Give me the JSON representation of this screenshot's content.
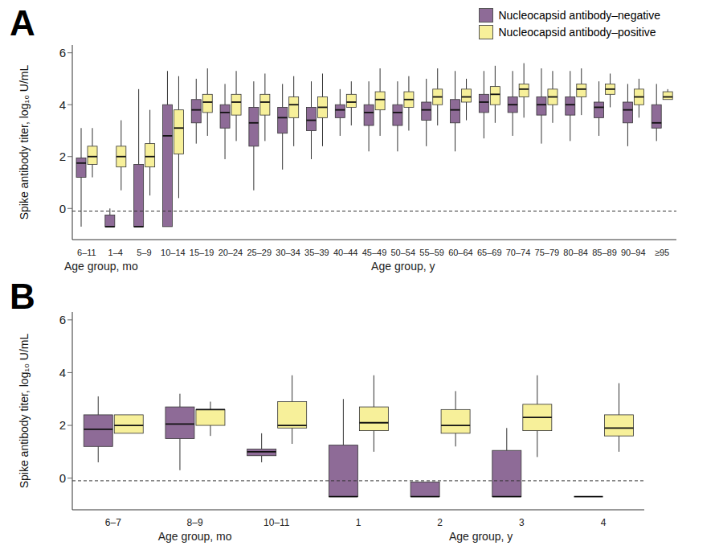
{
  "chart_data": [
    {
      "type": "box",
      "title": "A",
      "y_label": "Spike antibody titer, log₁₀ U/mL",
      "categories": [
        "6–11",
        "1–4",
        "5–9",
        "10–14",
        "15–19",
        "20–24",
        "25–29",
        "30–34",
        "35–39",
        "40–44",
        "45–49",
        "50–54",
        "55–59",
        "60–64",
        "65–69",
        "70–74",
        "75–79",
        "80–84",
        "85–89",
        "90–94",
        "≥95"
      ],
      "x_groups": [
        {
          "label": "Age group, mo",
          "from": "6–11",
          "to": "1–4"
        },
        {
          "label": "Age group, y",
          "from": "5–9",
          "to": "≥95"
        }
      ],
      "ylim": [
        -1.2,
        6.3
      ],
      "yticks": [
        0,
        2,
        4,
        6
      ],
      "grid": false,
      "legend": "top-right",
      "reference_line": {
        "y": -0.1,
        "line_style": "dashed"
      },
      "series": [
        {
          "name": "Nucleocapsid antibody–negative",
          "color": "#8e6b97",
          "values": [
            1.75,
            -0.7,
            -0.7,
            2.8,
            3.8,
            3.7,
            3.3,
            3.5,
            3.4,
            3.8,
            3.7,
            3.7,
            3.8,
            3.8,
            4.1,
            4.0,
            4.0,
            4.0,
            3.9,
            3.8,
            3.3
          ],
          "q1": [
            1.2,
            -0.7,
            -0.7,
            -0.7,
            3.3,
            3.1,
            2.4,
            2.9,
            3.0,
            3.5,
            3.2,
            3.2,
            3.4,
            3.3,
            3.7,
            3.7,
            3.6,
            3.6,
            3.5,
            3.3,
            3.1
          ],
          "q3": [
            1.95,
            -0.25,
            1.7,
            4.0,
            4.2,
            4.0,
            3.9,
            3.9,
            3.9,
            4.0,
            4.0,
            4.0,
            4.1,
            4.2,
            4.4,
            4.3,
            4.3,
            4.3,
            4.1,
            4.1,
            4.0
          ],
          "whisker_low": [
            -0.7,
            -0.7,
            -0.7,
            -0.7,
            2.5,
            1.9,
            0.7,
            1.5,
            1.9,
            2.8,
            2.2,
            2.2,
            2.4,
            2.2,
            2.7,
            2.8,
            2.5,
            2.6,
            2.8,
            2.4,
            2.6
          ],
          "whisker_high": [
            3.1,
            0.0,
            4.6,
            5.3,
            5.0,
            4.8,
            4.9,
            4.8,
            4.9,
            4.6,
            4.9,
            4.9,
            5.0,
            5.3,
            5.3,
            5.3,
            5.4,
            5.3,
            4.9,
            4.8,
            4.8
          ]
        },
        {
          "name": "Nucleocapsid antibody–positive",
          "color": "#f7f09a",
          "values": [
            2.0,
            2.0,
            2.0,
            3.1,
            4.1,
            4.1,
            4.1,
            4.0,
            3.9,
            4.1,
            4.2,
            4.2,
            4.3,
            4.3,
            4.4,
            4.6,
            4.3,
            4.6,
            4.6,
            4.3,
            4.3
          ],
          "q1": [
            1.7,
            1.6,
            1.6,
            2.1,
            3.7,
            3.6,
            3.6,
            3.5,
            3.5,
            3.9,
            3.8,
            3.9,
            4.0,
            4.1,
            4.0,
            4.3,
            4.0,
            4.3,
            4.4,
            4.0,
            4.2
          ],
          "q3": [
            2.4,
            2.4,
            2.5,
            3.8,
            4.4,
            4.4,
            4.4,
            4.3,
            4.3,
            4.4,
            4.5,
            4.5,
            4.6,
            4.6,
            4.7,
            4.8,
            4.6,
            4.8,
            4.8,
            4.6,
            4.5
          ],
          "whisker_low": [
            1.2,
            0.7,
            0.5,
            0.4,
            2.8,
            2.6,
            2.6,
            2.4,
            2.4,
            3.2,
            2.8,
            3.0,
            3.2,
            3.4,
            3.3,
            3.5,
            3.3,
            3.6,
            3.9,
            3.5,
            4.2
          ],
          "whisker_high": [
            3.1,
            3.4,
            3.8,
            5.1,
            5.4,
            5.3,
            5.2,
            5.1,
            5.2,
            4.9,
            5.4,
            5.1,
            5.4,
            5.0,
            5.5,
            5.6,
            5.3,
            5.4,
            5.2,
            5.0,
            4.6
          ]
        }
      ]
    },
    {
      "type": "box",
      "title": "B",
      "y_label": "Spike antibody titer, log₁₀ U/mL",
      "categories": [
        "6–7",
        "8–9",
        "10–11",
        "1",
        "2",
        "3",
        "4"
      ],
      "x_groups": [
        {
          "label": "Age group, mo",
          "from": "6–7",
          "to": "10–11"
        },
        {
          "label": "Age group, y",
          "from": "1",
          "to": "4"
        }
      ],
      "ylim": [
        -1.2,
        6.3
      ],
      "yticks": [
        0,
        2,
        4,
        6
      ],
      "grid": false,
      "reference_line": {
        "y": -0.1,
        "line_style": "dashed"
      },
      "series": [
        {
          "name": "Nucleocapsid antibody–negative",
          "color": "#8e6b97",
          "values": [
            1.85,
            2.05,
            1.0,
            -0.7,
            -0.7,
            -0.7,
            -0.7
          ],
          "q1": [
            1.2,
            1.5,
            0.85,
            -0.7,
            -0.7,
            -0.7,
            -0.7
          ],
          "q3": [
            2.4,
            2.7,
            1.1,
            1.25,
            -0.15,
            1.05,
            -0.7
          ],
          "whisker_low": [
            0.6,
            0.3,
            0.6,
            -0.7,
            -0.7,
            -0.7,
            -0.7
          ],
          "whisker_high": [
            3.1,
            3.2,
            1.7,
            3.0,
            -0.15,
            1.9,
            -0.7
          ]
        },
        {
          "name": "Nucleocapsid antibody–positive",
          "color": "#f7f09a",
          "values": [
            2.0,
            2.6,
            2.0,
            2.1,
            2.0,
            2.3,
            1.9
          ],
          "q1": [
            1.7,
            2.0,
            1.9,
            1.8,
            1.7,
            1.8,
            1.6
          ],
          "q3": [
            2.4,
            2.6,
            2.9,
            2.7,
            2.6,
            2.8,
            2.4
          ],
          "whisker_low": [
            1.7,
            1.6,
            1.3,
            1.0,
            1.2,
            0.8,
            1.0
          ],
          "whisker_high": [
            2.4,
            2.9,
            3.9,
            3.9,
            3.3,
            3.9,
            3.6
          ]
        }
      ]
    }
  ]
}
